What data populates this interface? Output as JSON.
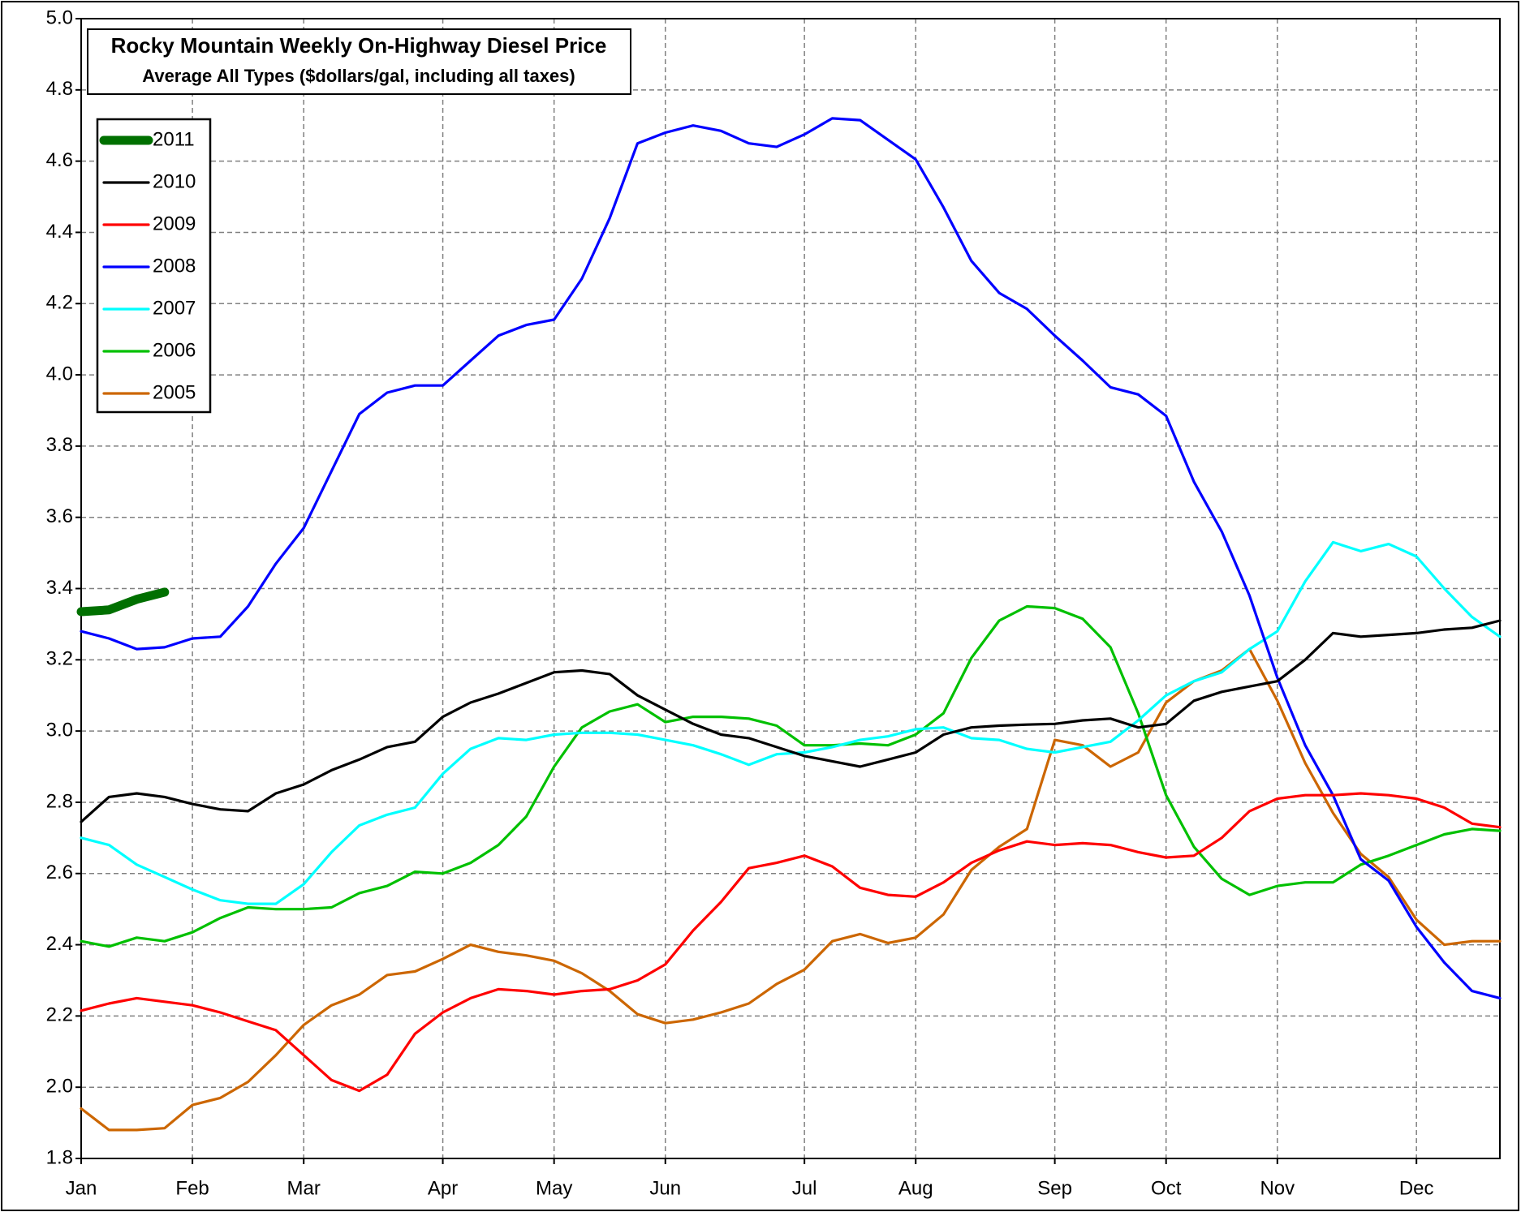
{
  "chart_data": {
    "type": "line",
    "title": "Rocky Mountain Weekly On-Highway Diesel Price",
    "subtitle": "Average All Types ($dollars/gal, including all taxes)",
    "categories": [
      "Jan",
      null,
      null,
      null,
      "Feb",
      null,
      null,
      null,
      "Mar",
      null,
      null,
      null,
      null,
      "Apr",
      null,
      null,
      null,
      "May",
      null,
      null,
      null,
      "Jun",
      null,
      null,
      null,
      null,
      "Jul",
      null,
      null,
      null,
      "Aug",
      null,
      null,
      null,
      null,
      "Sep",
      null,
      null,
      null,
      "Oct",
      null,
      null,
      null,
      "Nov",
      null,
      null,
      null,
      null,
      "Dec",
      null,
      null,
      null
    ],
    "ylim": [
      1.8,
      5.0
    ],
    "yticks": [
      1.8,
      {
        "value": 2.0,
        "label": "2.0"
      },
      2.2,
      2.4,
      2.6,
      2.8,
      {
        "value": 3.0,
        "label": "3.0"
      },
      3.2,
      3.4,
      3.6,
      3.8,
      {
        "value": 4.0,
        "label": "4.0"
      },
      4.2,
      4.4,
      4.6,
      4.8,
      {
        "value": 5.0,
        "label": "5.0"
      }
    ],
    "grid": true,
    "legend": "upper left",
    "series": [
      {
        "name": "2011",
        "color": "#007000",
        "values": [
          3.335,
          3.34,
          3.37,
          3.39,
          null,
          null,
          null,
          null,
          null,
          null,
          null,
          null,
          null,
          null,
          null,
          null,
          null,
          null,
          null,
          null,
          null,
          null,
          null,
          null,
          null,
          null,
          null,
          null,
          null,
          null,
          null,
          null,
          null,
          null,
          null,
          null,
          null,
          null,
          null,
          null,
          null,
          null,
          null,
          null,
          null,
          null,
          null,
          null,
          null,
          null,
          null,
          null
        ]
      },
      {
        "name": "2010",
        "color": "#000000",
        "values": [
          2.745,
          2.815,
          2.825,
          2.815,
          2.795,
          2.78,
          2.775,
          2.825,
          2.85,
          2.89,
          2.92,
          2.955,
          2.97,
          3.04,
          3.08,
          3.105,
          3.135,
          3.165,
          3.17,
          3.16,
          3.1,
          3.06,
          3.02,
          2.99,
          2.98,
          2.955,
          2.93,
          2.915,
          2.9,
          2.92,
          2.94,
          2.99,
          3.01,
          3.015,
          3.018,
          3.02,
          3.03,
          3.035,
          3.01,
          3.02,
          3.085,
          3.11,
          3.125,
          3.14,
          3.2,
          3.275,
          3.265,
          3.27,
          3.275,
          3.285,
          3.29,
          3.31
        ]
      },
      {
        "name": "2009",
        "color": "#ff0000",
        "values": [
          2.215,
          2.235,
          2.25,
          2.24,
          2.23,
          2.21,
          2.185,
          2.16,
          2.09,
          2.02,
          1.99,
          2.035,
          2.15,
          2.21,
          2.25,
          2.275,
          2.27,
          2.26,
          2.27,
          2.275,
          2.3,
          2.345,
          2.44,
          2.52,
          2.615,
          2.63,
          2.65,
          2.62,
          2.56,
          2.54,
          2.535,
          2.575,
          2.63,
          2.665,
          2.69,
          2.68,
          2.685,
          2.68,
          2.66,
          2.645,
          2.65,
          2.7,
          2.775,
          2.81,
          2.82,
          2.82,
          2.825,
          2.82,
          2.81,
          2.785,
          2.74,
          2.73
        ]
      },
      {
        "name": "2008",
        "color": "#0000ff",
        "values": [
          3.28,
          3.26,
          3.23,
          3.235,
          3.26,
          3.265,
          3.35,
          3.47,
          3.57,
          3.73,
          3.89,
          3.95,
          3.97,
          3.97,
          4.04,
          4.11,
          4.14,
          4.155,
          4.27,
          4.44,
          4.65,
          4.68,
          4.7,
          4.685,
          4.65,
          4.64,
          4.675,
          4.72,
          4.715,
          4.66,
          4.605,
          4.47,
          4.32,
          4.23,
          4.185,
          4.11,
          4.04,
          3.965,
          3.945,
          3.885,
          3.7,
          3.56,
          3.38,
          3.15,
          2.96,
          2.82,
          2.64,
          2.58,
          2.45,
          2.35,
          2.27,
          2.25
        ]
      },
      {
        "name": "2007",
        "color": "#00ffff",
        "values": [
          2.7,
          2.68,
          2.625,
          2.59,
          2.555,
          2.525,
          2.515,
          2.515,
          2.57,
          2.66,
          2.735,
          2.765,
          2.785,
          2.88,
          2.95,
          2.98,
          2.975,
          2.99,
          2.995,
          2.995,
          2.99,
          2.975,
          2.96,
          2.935,
          2.905,
          2.935,
          2.94,
          2.955,
          2.975,
          2.985,
          3.005,
          3.01,
          2.98,
          2.975,
          2.95,
          2.94,
          2.955,
          2.97,
          3.03,
          3.1,
          3.14,
          3.165,
          3.23,
          3.28,
          3.42,
          3.53,
          3.505,
          3.525,
          3.49,
          3.4,
          3.32,
          3.265
        ]
      },
      {
        "name": "2006",
        "color": "#00c000",
        "values": [
          2.41,
          2.395,
          2.42,
          2.41,
          2.435,
          2.475,
          2.505,
          2.5,
          2.5,
          2.505,
          2.545,
          2.565,
          2.605,
          2.6,
          2.63,
          2.68,
          2.76,
          2.9,
          3.01,
          3.055,
          3.075,
          3.025,
          3.04,
          3.04,
          3.035,
          3.015,
          2.96,
          2.96,
          2.965,
          2.96,
          2.99,
          3.05,
          3.205,
          3.31,
          3.35,
          3.345,
          3.315,
          3.235,
          3.05,
          2.82,
          2.675,
          2.585,
          2.54,
          2.565,
          2.575,
          2.575,
          2.625,
          2.65,
          2.68,
          2.71,
          2.725,
          2.72
        ]
      },
      {
        "name": "2005",
        "color": "#cc6600",
        "values": [
          1.94,
          1.88,
          1.88,
          1.885,
          1.95,
          1.97,
          2.015,
          2.09,
          2.175,
          2.23,
          2.26,
          2.315,
          2.325,
          2.36,
          2.4,
          2.38,
          2.37,
          2.355,
          2.32,
          2.27,
          2.205,
          2.18,
          2.19,
          2.21,
          2.235,
          2.29,
          2.33,
          2.41,
          2.43,
          2.405,
          2.42,
          2.485,
          2.61,
          2.675,
          2.725,
          2.975,
          2.96,
          2.9,
          2.94,
          3.08,
          3.14,
          3.17,
          3.23,
          3.085,
          2.91,
          2.77,
          2.655,
          2.59,
          2.47,
          2.4,
          2.41,
          2.41
        ]
      }
    ]
  }
}
